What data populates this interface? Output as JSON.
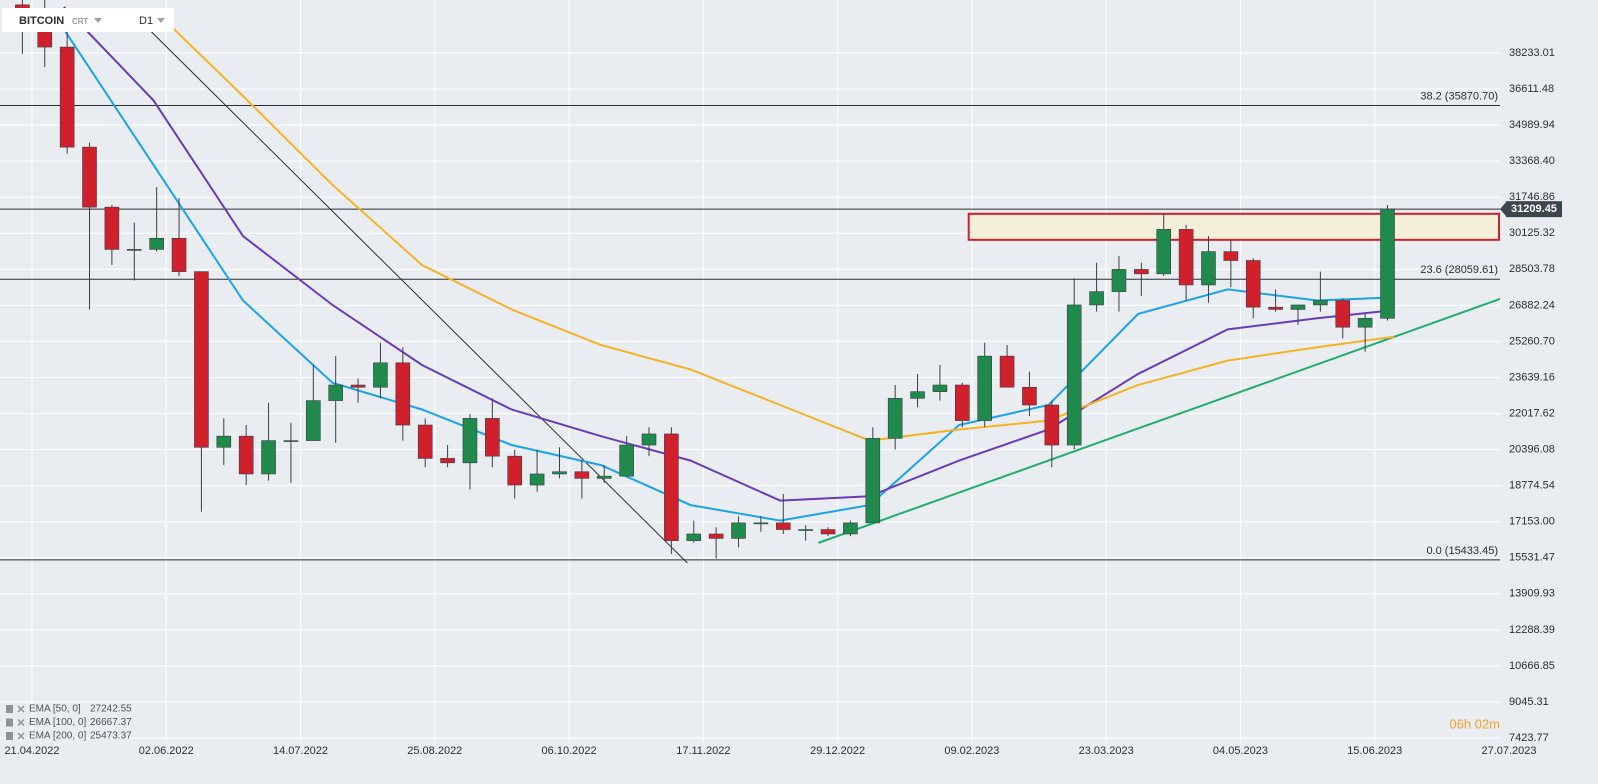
{
  "chart_data": {
    "type": "candlestick",
    "instrument": "BITCOIN",
    "tag": "CRT",
    "timeframe": "D1",
    "x": [
      "2022-04-18",
      "2022-04-25",
      "2022-05-02",
      "2022-05-09",
      "2022-05-16",
      "2022-05-23",
      "2022-05-30",
      "2022-06-06",
      "2022-06-13",
      "2022-06-20",
      "2022-06-27",
      "2022-07-04",
      "2022-07-11",
      "2022-07-18",
      "2022-07-25",
      "2022-08-01",
      "2022-08-08",
      "2022-08-15",
      "2022-08-22",
      "2022-08-29",
      "2022-09-05",
      "2022-09-12",
      "2022-09-19",
      "2022-09-26",
      "2022-10-03",
      "2022-10-10",
      "2022-10-17",
      "2022-10-24",
      "2022-10-31",
      "2022-11-07",
      "2022-11-14",
      "2022-11-21",
      "2022-11-28",
      "2022-12-05",
      "2022-12-12",
      "2022-12-19",
      "2022-12-26",
      "2023-01-02",
      "2023-01-09",
      "2023-01-16",
      "2023-01-23",
      "2023-01-30",
      "2023-02-06",
      "2023-02-13",
      "2023-02-20",
      "2023-02-27",
      "2023-03-06",
      "2023-03-13",
      "2023-03-20",
      "2023-03-27",
      "2023-04-03",
      "2023-04-10",
      "2023-04-17",
      "2023-04-24",
      "2023-05-01",
      "2023-05-08",
      "2023-05-15",
      "2023-05-22",
      "2023-05-29",
      "2023-06-05",
      "2023-06-12",
      "2023-06-19"
    ],
    "open": [
      40400,
      39400,
      38500,
      34000,
      31300,
      29400,
      29400,
      29900,
      28400,
      20500,
      21000,
      19300,
      20800,
      20800,
      22600,
      23300,
      23200,
      24300,
      21500,
      20000,
      19800,
      21800,
      20100,
      18800,
      19300,
      19400,
      19100,
      19200,
      20600,
      21100,
      16300,
      16600,
      16400,
      17100,
      17100,
      16800,
      16800,
      16600,
      17100,
      20900,
      22700,
      23000,
      23300,
      21700,
      24600,
      23200,
      22400,
      20600,
      26900,
      27500,
      28500,
      28300,
      30300,
      27800,
      29300,
      28900,
      26800,
      26700,
      26900,
      27100,
      25900,
      26300
    ],
    "high": [
      42900,
      40800,
      40000,
      34200,
      31400,
      30600,
      32200,
      31700,
      28400,
      21800,
      21500,
      22500,
      21600,
      24200,
      24600,
      23600,
      25200,
      25000,
      21800,
      20600,
      22000,
      22700,
      20400,
      20400,
      20500,
      19900,
      19700,
      21000,
      21400,
      21400,
      17200,
      16900,
      17400,
      17400,
      18400,
      17000,
      16900,
      17200,
      21400,
      23300,
      23800,
      24200,
      23400,
      25200,
      25100,
      23900,
      22600,
      28100,
      28800,
      29100,
      28800,
      31000,
      30500,
      30000,
      29800,
      29000,
      27600,
      26900,
      28400,
      27200,
      26500,
      31400
    ],
    "low": [
      38200,
      37600,
      33700,
      26700,
      28700,
      28000,
      29300,
      28200,
      17600,
      19700,
      18800,
      19000,
      18900,
      20800,
      20700,
      22500,
      22700,
      20800,
      19600,
      19600,
      18600,
      19600,
      18200,
      18500,
      19100,
      18200,
      18900,
      19200,
      20100,
      15700,
      16200,
      15500,
      16000,
      16700,
      16600,
      16300,
      16500,
      16500,
      17100,
      20400,
      22300,
      22600,
      21400,
      21400,
      23200,
      21900,
      19600,
      20400,
      26600,
      26600,
      27300,
      28200,
      27100,
      27000,
      27700,
      26300,
      26600,
      26000,
      26600,
      25400,
      24800,
      26200
    ],
    "close": [
      39400,
      38500,
      34000,
      31300,
      29400,
      29400,
      29900,
      28400,
      20500,
      21000,
      19300,
      20800,
      20800,
      22600,
      23300,
      23200,
      24300,
      21500,
      20000,
      19800,
      21800,
      20100,
      18800,
      19300,
      19400,
      19100,
      19200,
      20600,
      21100,
      16300,
      16600,
      16400,
      17100,
      17100,
      16800,
      16800,
      16600,
      17100,
      20900,
      22700,
      23000,
      23300,
      21700,
      24600,
      23200,
      22400,
      20600,
      26900,
      27500,
      28500,
      28300,
      30300,
      27800,
      29300,
      28900,
      26800,
      26700,
      26900,
      27100,
      25900,
      26300,
      31209.45
    ],
    "up_color": "#1f8a4c",
    "down_color": "#d0202c",
    "series": [
      {
        "name": "EMA [50, 0]",
        "color": "#1aa3e8",
        "x": [
          "2022-05-01",
          "2022-05-29",
          "2022-06-26",
          "2022-07-24",
          "2022-08-21",
          "2022-09-18",
          "2022-10-16",
          "2022-11-13",
          "2022-12-11",
          "2023-01-08",
          "2023-02-05",
          "2023-03-05",
          "2023-04-02",
          "2023-04-30",
          "2023-05-28",
          "2023-06-21"
        ],
        "values": [
          39300,
          33200,
          27100,
          23400,
          22200,
          20600,
          19700,
          17900,
          17200,
          17900,
          21500,
          22400,
          26500,
          27600,
          27100,
          27242.55
        ]
      },
      {
        "name": "EMA [100, 0]",
        "color": "#6a3bb8",
        "x": [
          "2022-05-01",
          "2022-05-29",
          "2022-06-26",
          "2022-07-24",
          "2022-08-21",
          "2022-09-18",
          "2022-10-16",
          "2022-11-13",
          "2022-12-11",
          "2023-01-08",
          "2023-02-05",
          "2023-03-05",
          "2023-04-02",
          "2023-04-30",
          "2023-05-28",
          "2023-06-21"
        ],
        "values": [
          40300,
          36100,
          30000,
          26900,
          24200,
          22200,
          21000,
          19900,
          18100,
          18300,
          19900,
          21300,
          23800,
          25800,
          26300,
          26667.37
        ]
      },
      {
        "name": "EMA [200, 0]",
        "color": "#f5b324",
        "x": [
          "2022-05-01",
          "2022-05-29",
          "2022-06-26",
          "2022-07-24",
          "2022-08-21",
          "2022-09-18",
          "2022-10-16",
          "2022-11-13",
          "2022-12-11",
          "2023-01-08",
          "2023-02-05",
          "2023-03-05",
          "2023-04-02",
          "2023-04-30",
          "2023-05-28",
          "2023-06-21"
        ],
        "values": [
          null,
          40200,
          36300,
          32300,
          28700,
          26700,
          25100,
          24000,
          22400,
          20800,
          21300,
          21700,
          23300,
          24400,
          25000,
          25473.37
        ]
      }
    ],
    "levels": [
      {
        "label": "38.2 (35870.70)",
        "value": 35870.7
      },
      {
        "label": "23.6 (28059.61)",
        "value": 28059.61
      },
      {
        "label": "0.0 (15433.45)",
        "value": 15433.45
      }
    ],
    "price": 31209.45,
    "zone": {
      "start": "2023-02-08",
      "low": 29830,
      "high": 31000,
      "color": "#d0202c"
    },
    "trendlines": [
      {
        "color": "#1fae6e",
        "x": [
          "2022-12-23",
          "2023-07-25"
        ],
        "y": [
          16200,
          27214
        ]
      },
      {
        "color": "#2a2e33",
        "x": [
          "2022-05-24",
          "2022-11-12"
        ],
        "y": [
          39808,
          15295
        ]
      }
    ],
    "timer": "06h 02m",
    "xlim": [
      "2022-04-11",
      "2023-07-27"
    ],
    "xticks": [
      {
        "value": "2022-04-21",
        "label": "21.04.2022"
      },
      {
        "value": "2022-06-02",
        "label": "02.06.2022"
      },
      {
        "value": "2022-07-14",
        "label": "14.07.2022"
      },
      {
        "value": "2022-08-25",
        "label": "25.08.2022"
      },
      {
        "value": "2022-10-06",
        "label": "06.10.2022"
      },
      {
        "value": "2022-11-17",
        "label": "17.11.2022"
      },
      {
        "value": "2022-12-29",
        "label": "29.12.2022"
      },
      {
        "value": "2023-02-09",
        "label": "09.02.2023"
      },
      {
        "value": "2023-03-23",
        "label": "23.03.2023"
      },
      {
        "value": "2023-05-04",
        "label": "04.05.2023"
      },
      {
        "value": "2023-06-15",
        "label": "15.06.2023"
      },
      {
        "value": "2023-07-27",
        "label": "27.07.2023"
      }
    ],
    "ylim": [
      7244,
      40617
    ],
    "yticks": [
      38233.01,
      36611.48,
      34989.94,
      {
        "value": 33368.4,
        "label": "33368.40"
      },
      31746.86,
      30125.32,
      28503.78,
      26882.24,
      {
        "value": 25260.7,
        "label": "25260.70"
      },
      23639.16,
      22017.62,
      20396.08,
      18774.54,
      {
        "value": 17153,
        "label": "17153.00"
      },
      15531.47,
      13909.93,
      12288.39,
      10666.85,
      9045.31,
      7423.77
    ],
    "grid": true
  }
}
